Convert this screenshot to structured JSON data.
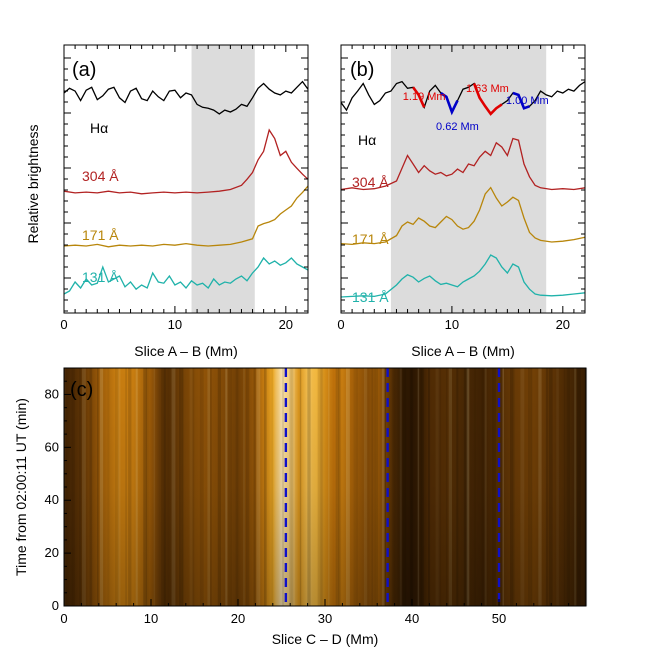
{
  "chart_data": [
    {
      "type": "line",
      "panel": "(a)",
      "xlabel": "Slice A – B (Mm)",
      "ylabel": "Relative brightness",
      "xlim": [
        0,
        22
      ],
      "xticks": [
        0,
        10,
        20
      ],
      "shaded_region": [
        11.5,
        17.2
      ],
      "series": [
        {
          "name": "Hα",
          "color": "#000000",
          "x": [
            0,
            0.5,
            1,
            1.5,
            2,
            2.5,
            3,
            3.5,
            4,
            4.5,
            5,
            5.5,
            6,
            6.5,
            7,
            7.5,
            8,
            8.5,
            9,
            9.5,
            10,
            10.5,
            11,
            11.5,
            12,
            12.5,
            13,
            13.5,
            14,
            14.5,
            15,
            15.5,
            16,
            16.5,
            17,
            17.5,
            18,
            18.5,
            19,
            19.5,
            20,
            20.5,
            21,
            21.5,
            22
          ],
          "y": [
            0.6,
            0.65,
            0.62,
            0.52,
            0.63,
            0.66,
            0.53,
            0.57,
            0.64,
            0.66,
            0.55,
            0.5,
            0.62,
            0.65,
            0.54,
            0.52,
            0.62,
            0.56,
            0.52,
            0.62,
            0.63,
            0.55,
            0.6,
            0.58,
            0.48,
            0.45,
            0.44,
            0.42,
            0.38,
            0.42,
            0.4,
            0.43,
            0.48,
            0.46,
            0.55,
            0.65,
            0.7,
            0.64,
            0.6,
            0.58,
            0.62,
            0.6,
            0.66,
            0.72,
            0.64
          ]
        },
        {
          "name": "304 Å",
          "color": "#b22222",
          "x": [
            0,
            1,
            2,
            3,
            4,
            5,
            6,
            7,
            8,
            9,
            10,
            11,
            12,
            13,
            14,
            15,
            16,
            16.5,
            17,
            17.5,
            18,
            18.5,
            19,
            19.5,
            20,
            20.5,
            21,
            21.5,
            22
          ],
          "y": [
            0.08,
            0.06,
            0.07,
            0.06,
            0.08,
            0.06,
            0.07,
            0.05,
            0.06,
            0.07,
            0.06,
            0.07,
            0.06,
            0.07,
            0.08,
            0.1,
            0.15,
            0.22,
            0.3,
            0.45,
            0.55,
            0.8,
            0.7,
            0.5,
            0.55,
            0.42,
            0.35,
            0.28,
            0.22
          ]
        },
        {
          "name": "171 Å",
          "color": "#b8860b",
          "x": [
            0,
            1,
            2,
            3,
            4,
            5,
            6,
            7,
            8,
            9,
            10,
            11,
            12,
            13,
            14,
            15,
            16,
            17,
            17.5,
            18,
            18.5,
            19,
            19.5,
            20,
            20.5,
            21,
            21.5,
            22
          ],
          "y": [
            0.05,
            0.06,
            0.05,
            0.07,
            0.04,
            0.06,
            0.05,
            0.06,
            0.05,
            0.07,
            0.06,
            0.08,
            0.06,
            0.05,
            0.06,
            0.07,
            0.1,
            0.14,
            0.3,
            0.33,
            0.35,
            0.38,
            0.45,
            0.5,
            0.55,
            0.65,
            0.72,
            0.8
          ]
        },
        {
          "name": "131 Å",
          "color": "#20b2aa",
          "x": [
            0,
            0.5,
            1,
            1.5,
            2,
            2.5,
            3,
            3.5,
            4,
            4.5,
            5,
            5.5,
            6,
            6.5,
            7,
            7.5,
            8,
            8.5,
            9,
            9.5,
            10,
            10.5,
            11,
            11.5,
            12,
            12.5,
            13,
            13.5,
            14,
            14.5,
            15,
            15.5,
            16,
            16.5,
            17,
            17.5,
            18,
            18.5,
            19,
            19.5,
            20,
            20.5,
            21,
            21.5,
            22
          ],
          "y": [
            0.1,
            0.15,
            0.3,
            0.2,
            0.35,
            0.25,
            0.28,
            0.55,
            0.3,
            0.35,
            0.4,
            0.22,
            0.3,
            0.18,
            0.25,
            0.2,
            0.45,
            0.3,
            0.28,
            0.4,
            0.25,
            0.3,
            0.2,
            0.32,
            0.25,
            0.28,
            0.2,
            0.35,
            0.25,
            0.3,
            0.28,
            0.35,
            0.4,
            0.32,
            0.45,
            0.55,
            0.7,
            0.6,
            0.65,
            0.58,
            0.62,
            0.7,
            0.6,
            0.55,
            0.5
          ]
        }
      ]
    },
    {
      "type": "line",
      "panel": "(b)",
      "xlabel": "Slice A – B (Mm)",
      "xlim": [
        0,
        22
      ],
      "xticks": [
        0,
        10,
        20
      ],
      "shaded_region": [
        4.5,
        18.5
      ],
      "annotations": [
        {
          "text": "1.19 Mm",
          "color": "#e00000",
          "x": 7.5
        },
        {
          "text": "0.62 Mm",
          "color": "#0000c8",
          "x": 10.5
        },
        {
          "text": "1.63 Mm",
          "color": "#e00000",
          "x": 13.2
        },
        {
          "text": "1.00 Mm",
          "color": "#0000c8",
          "x": 16.8
        }
      ],
      "series": [
        {
          "name": "Hα",
          "color": "#000000",
          "x": [
            0,
            0.5,
            1,
            1.5,
            2,
            2.5,
            3,
            3.5,
            4,
            4.5,
            5,
            5.5,
            6,
            6.5,
            7,
            7.5,
            8,
            8.5,
            9,
            9.5,
            10,
            10.5,
            11,
            11.5,
            12,
            12.5,
            13,
            13.5,
            14,
            14.5,
            15,
            15.5,
            16,
            16.5,
            17,
            17.5,
            18,
            18.5,
            19,
            19.5,
            20,
            20.5,
            21,
            21.5,
            22
          ],
          "y": [
            0.5,
            0.42,
            0.55,
            0.62,
            0.7,
            0.58,
            0.48,
            0.52,
            0.6,
            0.62,
            0.7,
            0.72,
            0.65,
            0.66,
            0.58,
            0.45,
            0.62,
            0.68,
            0.6,
            0.56,
            0.4,
            0.52,
            0.64,
            0.66,
            0.7,
            0.55,
            0.46,
            0.38,
            0.44,
            0.48,
            0.52,
            0.6,
            0.58,
            0.44,
            0.46,
            0.52,
            0.62,
            0.58,
            0.56,
            0.62,
            0.6,
            0.64,
            0.62,
            0.68,
            0.72
          ]
        },
        {
          "name": "304 Å",
          "color": "#b22222",
          "x": [
            0,
            1,
            2,
            3,
            4,
            5,
            5.5,
            6,
            6.5,
            7,
            7.5,
            8,
            8.5,
            9,
            9.5,
            10,
            10.5,
            11,
            11.5,
            12,
            12.5,
            13,
            13.5,
            14,
            14.5,
            15,
            15.5,
            16,
            16.5,
            17,
            17.5,
            18,
            19,
            20,
            21,
            22
          ],
          "y": [
            0.1,
            0.12,
            0.1,
            0.11,
            0.14,
            0.2,
            0.35,
            0.5,
            0.4,
            0.3,
            0.38,
            0.32,
            0.28,
            0.3,
            0.26,
            0.28,
            0.34,
            0.3,
            0.4,
            0.38,
            0.48,
            0.55,
            0.5,
            0.65,
            0.6,
            0.5,
            0.7,
            0.68,
            0.4,
            0.25,
            0.15,
            0.12,
            0.1,
            0.11,
            0.1,
            0.12
          ]
        },
        {
          "name": "171 Å",
          "color": "#b8860b",
          "x": [
            0,
            1,
            2,
            3,
            4,
            5,
            5.5,
            6,
            6.5,
            7,
            7.5,
            8,
            8.5,
            9,
            9.5,
            10,
            10.5,
            11,
            11.5,
            12,
            12.5,
            13,
            13.5,
            14,
            14.5,
            15,
            15.5,
            16,
            16.5,
            17,
            17.5,
            18,
            19,
            20,
            21,
            22
          ],
          "y": [
            0.08,
            0.07,
            0.09,
            0.08,
            0.1,
            0.18,
            0.3,
            0.35,
            0.32,
            0.4,
            0.36,
            0.3,
            0.28,
            0.35,
            0.42,
            0.38,
            0.3,
            0.26,
            0.28,
            0.36,
            0.5,
            0.7,
            0.78,
            0.65,
            0.55,
            0.6,
            0.66,
            0.62,
            0.4,
            0.22,
            0.15,
            0.12,
            0.1,
            0.11,
            0.13,
            0.16
          ]
        },
        {
          "name": "131 Å",
          "color": "#20b2aa",
          "x": [
            0,
            1,
            2,
            3,
            4,
            5,
            5.5,
            6,
            6.5,
            7,
            7.5,
            8,
            8.5,
            9,
            9.5,
            10,
            10.5,
            11,
            11.5,
            12,
            12.5,
            13,
            13.5,
            14,
            14.5,
            15,
            15.5,
            16,
            16.5,
            17,
            17.5,
            18,
            19,
            20,
            21,
            22
          ],
          "y": [
            0.05,
            0.06,
            0.07,
            0.06,
            0.1,
            0.25,
            0.35,
            0.42,
            0.38,
            0.3,
            0.36,
            0.4,
            0.32,
            0.26,
            0.28,
            0.25,
            0.22,
            0.3,
            0.35,
            0.4,
            0.48,
            0.6,
            0.75,
            0.7,
            0.55,
            0.45,
            0.6,
            0.55,
            0.3,
            0.18,
            0.1,
            0.08,
            0.07,
            0.08,
            0.1,
            0.12
          ]
        }
      ]
    },
    {
      "type": "heatmap",
      "panel": "(c)",
      "xlabel": "Slice C – D (Mm)",
      "ylabel": "Time from 02:00:11 UT (min)",
      "xlim": [
        0,
        60
      ],
      "ylim": [
        0,
        90
      ],
      "xticks": [
        0,
        10,
        20,
        30,
        40,
        50
      ],
      "yticks": [
        0,
        20,
        40,
        60,
        80
      ],
      "colormap": "sdoaia171",
      "profile_x": [
        0,
        2,
        4,
        6,
        8,
        10,
        11,
        12,
        14,
        16,
        18,
        20,
        22,
        23,
        24,
        25,
        26,
        27,
        28,
        29,
        30,
        31,
        32,
        33,
        34,
        35,
        36,
        37,
        38,
        39,
        40,
        41,
        42,
        44,
        46,
        48,
        50,
        52,
        54,
        56,
        58,
        60
      ],
      "profile_v": [
        0.15,
        0.25,
        0.4,
        0.55,
        0.55,
        0.4,
        0.28,
        0.22,
        0.32,
        0.38,
        0.35,
        0.3,
        0.4,
        0.55,
        0.72,
        0.92,
        0.85,
        0.65,
        0.8,
        0.78,
        0.62,
        0.5,
        0.55,
        0.45,
        0.4,
        0.35,
        0.42,
        0.3,
        0.18,
        0.1,
        0.08,
        0.12,
        0.2,
        0.22,
        0.18,
        0.15,
        0.22,
        0.28,
        0.3,
        0.25,
        0.18,
        0.12
      ],
      "dashed_lines_x": [
        25.5,
        37.2,
        50.0
      ],
      "dashed_line_color": "#1010c8"
    }
  ]
}
